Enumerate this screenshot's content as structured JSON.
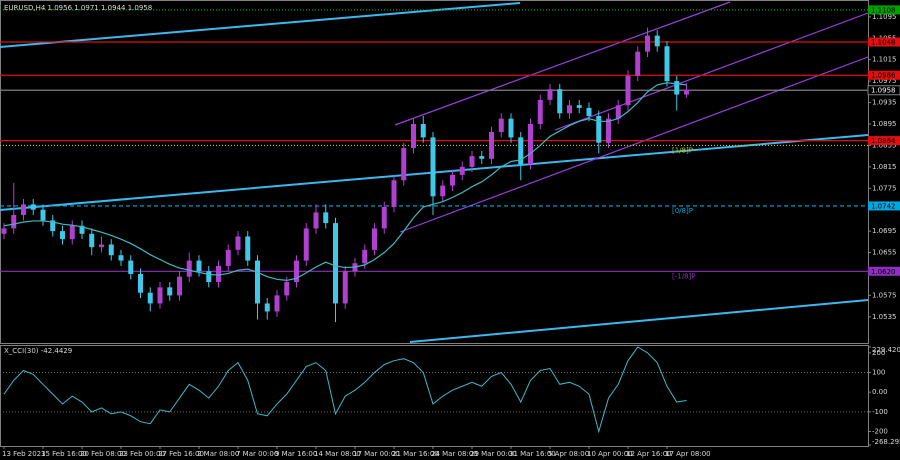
{
  "chart_data": [
    {
      "type": "candlestick",
      "title": "EURUSD,H4  1.0956 1.0971 1.0944 1.0958",
      "categories": [
        "13 Feb 2023",
        null,
        null,
        null,
        "15 Feb 16:00",
        null,
        null,
        null,
        "20 Feb 08:00",
        null,
        null,
        null,
        "23 Feb 00:00",
        null,
        null,
        null,
        "27 Feb 16:00",
        null,
        null,
        null,
        "2 Mar 08:00",
        null,
        null,
        null,
        "7 Mar 00:00",
        null,
        null,
        null,
        "9 Mar 16:00",
        null,
        null,
        null,
        "14 Mar 08:00",
        null,
        null,
        null,
        "17 Mar 00:00",
        null,
        null,
        null,
        "21 Mar 16:00",
        null,
        null,
        null,
        "24 Mar 08:00",
        null,
        null,
        null,
        "29 Mar 00:00",
        null,
        null,
        null,
        "31 Mar 16:00",
        null,
        null,
        null,
        "5 Apr 08:00",
        null,
        null,
        null,
        "10 Apr 00:00",
        null,
        null,
        null,
        "12 Apr 16:00",
        null,
        null,
        null,
        "17 Apr 08:00",
        null,
        null
      ],
      "open": [
        1.069,
        1.07,
        1.0725,
        1.0745,
        1.0735,
        1.0715,
        1.0695,
        1.068,
        1.0705,
        1.069,
        1.0665,
        1.067,
        1.065,
        1.064,
        1.0615,
        1.058,
        1.056,
        1.059,
        1.0575,
        1.061,
        1.064,
        1.062,
        1.06,
        1.063,
        1.066,
        1.0685,
        1.064,
        1.056,
        1.0545,
        1.0575,
        1.06,
        1.064,
        1.07,
        1.073,
        1.071,
        1.056,
        1.062,
        1.0635,
        1.066,
        1.07,
        1.074,
        1.079,
        1.085,
        1.0895,
        1.087,
        1.076,
        1.078,
        1.08,
        1.0815,
        1.0835,
        1.083,
        1.088,
        1.0905,
        1.087,
        1.082,
        1.0895,
        1.094,
        1.096,
        1.0915,
        1.093,
        1.0925,
        1.091,
        1.086,
        1.0905,
        1.093,
        1.0985,
        1.103,
        1.106,
        1.104,
        1.0975,
        1.095
      ],
      "high": [
        1.071,
        1.0785,
        1.0755,
        1.0755,
        1.0745,
        1.0725,
        1.0705,
        1.0715,
        1.0715,
        1.07,
        1.0685,
        1.068,
        1.066,
        1.065,
        1.0625,
        1.059,
        1.06,
        1.06,
        1.062,
        1.0655,
        1.065,
        1.063,
        1.064,
        1.067,
        1.0695,
        1.0695,
        1.065,
        1.057,
        1.0585,
        1.061,
        1.065,
        1.071,
        1.0745,
        1.0745,
        1.072,
        1.063,
        1.0645,
        1.067,
        1.071,
        1.075,
        1.08,
        1.086,
        1.0905,
        1.091,
        1.088,
        1.079,
        1.081,
        1.0825,
        1.0845,
        1.0845,
        1.089,
        1.0915,
        1.0915,
        1.088,
        1.0905,
        1.095,
        1.097,
        1.097,
        1.094,
        1.094,
        1.0935,
        1.092,
        1.0915,
        1.094,
        1.0995,
        1.104,
        1.1075,
        1.107,
        1.105,
        1.0985,
        1.0971
      ],
      "low": [
        1.068,
        1.069,
        1.0715,
        1.0725,
        1.0705,
        1.0685,
        1.067,
        1.067,
        1.068,
        1.065,
        1.0655,
        1.064,
        1.063,
        1.0605,
        1.057,
        1.0545,
        1.055,
        1.0565,
        1.0565,
        1.06,
        1.061,
        1.059,
        1.059,
        1.062,
        1.065,
        1.063,
        1.053,
        1.053,
        1.0535,
        1.0565,
        1.059,
        1.063,
        1.069,
        1.07,
        1.0525,
        1.055,
        1.061,
        1.0625,
        1.065,
        1.069,
        1.073,
        1.078,
        1.084,
        1.086,
        1.0725,
        1.075,
        1.077,
        1.079,
        1.0805,
        1.082,
        1.082,
        1.087,
        1.086,
        1.079,
        1.081,
        1.0885,
        1.093,
        1.0905,
        1.0905,
        1.0915,
        1.09,
        1.084,
        1.085,
        1.0895,
        1.092,
        1.0975,
        1.102,
        1.103,
        1.0965,
        1.092,
        1.0944
      ],
      "close": [
        1.07,
        1.0725,
        1.0745,
        1.0735,
        1.0715,
        1.0695,
        1.068,
        1.0705,
        1.069,
        1.0665,
        1.067,
        1.065,
        1.064,
        1.0615,
        1.058,
        1.056,
        1.059,
        1.0575,
        1.061,
        1.064,
        1.062,
        1.06,
        1.063,
        1.066,
        1.0685,
        1.064,
        1.056,
        1.0545,
        1.0575,
        1.06,
        1.064,
        1.07,
        1.073,
        1.071,
        1.056,
        1.062,
        1.0635,
        1.066,
        1.07,
        1.074,
        1.079,
        1.085,
        1.0895,
        1.087,
        1.076,
        1.078,
        1.08,
        1.0815,
        1.0835,
        1.083,
        1.088,
        1.0905,
        1.087,
        1.082,
        1.0895,
        1.094,
        1.096,
        1.0915,
        1.093,
        1.0925,
        1.091,
        1.086,
        1.0905,
        1.093,
        1.0985,
        1.103,
        1.106,
        1.104,
        1.0975,
        1.095,
        1.0958
      ],
      "up_color": "#b040d0",
      "down_color": "#40c8e8",
      "ma": {
        "color": "#40b8c0",
        "values": [
          1.0705,
          1.0708,
          1.0712,
          1.0714,
          1.0714,
          1.0712,
          1.0708,
          1.0706,
          1.0703,
          1.0698,
          1.0693,
          1.0687,
          1.068,
          1.0672,
          1.0662,
          1.0651,
          1.0642,
          1.0633,
          1.0626,
          1.0622,
          1.0618,
          1.0614,
          1.0613,
          1.0616,
          1.0622,
          1.0624,
          1.0618,
          1.061,
          1.0605,
          1.0603,
          1.0607,
          1.0617,
          1.0628,
          1.0637,
          1.063,
          1.0627,
          1.0628,
          1.0632,
          1.0642,
          1.0655,
          1.0672,
          1.0695,
          1.072,
          1.074,
          1.0745,
          1.075,
          1.0758,
          1.0767,
          1.0778,
          1.0787,
          1.08,
          1.0815,
          1.0825,
          1.0828,
          1.084,
          1.0855,
          1.0872,
          1.0882,
          1.0892,
          1.09,
          1.0905,
          1.09,
          1.09,
          1.0905,
          1.0918,
          1.0935,
          1.0955,
          1.0968,
          1.0972,
          1.097,
          1.0968
        ]
      },
      "ylim": [
        1.0488,
        1.1119
      ],
      "yticks": [
        1.1095,
        1.1055,
        1.1015,
        1.0975,
        1.0935,
        1.0895,
        1.0855,
        1.0815,
        1.0775,
        1.0695,
        1.0655,
        1.0575,
        1.0535
      ],
      "grid": false,
      "levels": [
        {
          "value": 1.1108,
          "color": "#00a000",
          "style": "dotted",
          "price_box": true
        },
        {
          "value": 1.1048,
          "color": "#e01010",
          "style": "solid",
          "price_box": true
        },
        {
          "value": 1.0986,
          "color": "#e01010",
          "style": "solid",
          "price_box": true
        },
        {
          "value": 1.0958,
          "color": "#808080",
          "style": "solid",
          "price_box": true,
          "box_color": "#000000"
        },
        {
          "value": 1.0864,
          "color": "#e01010",
          "style": "solid",
          "price_box": true
        },
        {
          "value": 1.0855,
          "color": "#c8c800",
          "style": "dotted",
          "price_box": false,
          "tag": "[1/8]P"
        },
        {
          "value": 1.0742,
          "color": "#00a8e0",
          "style": "dashed",
          "price_box": true,
          "tag": "[0/8]P"
        },
        {
          "value": 1.062,
          "label": "1.0620",
          "color": "#9030c0",
          "style": "solid",
          "price_box": true,
          "tag": "[-1/8]P"
        }
      ]
    },
    {
      "type": "line",
      "title": "X_CCI(30) -42.4429",
      "color": "#40b8c8",
      "values": [
        -10,
        60,
        110,
        90,
        40,
        -10,
        -60,
        -20,
        -50,
        -100,
        -80,
        -110,
        -100,
        -120,
        -150,
        -160,
        -90,
        -100,
        -30,
        40,
        10,
        -30,
        30,
        110,
        150,
        60,
        -110,
        -120,
        -60,
        -10,
        60,
        130,
        150,
        110,
        -110,
        -20,
        10,
        50,
        100,
        140,
        160,
        170,
        150,
        100,
        -60,
        -20,
        10,
        30,
        50,
        30,
        80,
        100,
        40,
        -50,
        60,
        110,
        120,
        40,
        50,
        30,
        -10,
        -200,
        -30,
        40,
        160,
        229.4203,
        200,
        150,
        30,
        -50,
        -42.4429
      ],
      "ylim": [
        -268.2959,
        229.4203
      ],
      "yticks": [
        229.4203,
        200,
        100,
        {
          "value": 0,
          "label": "0.00"
        },
        -100,
        -200,
        -268.2959
      ],
      "levels": [
        100,
        -100
      ]
    }
  ]
}
